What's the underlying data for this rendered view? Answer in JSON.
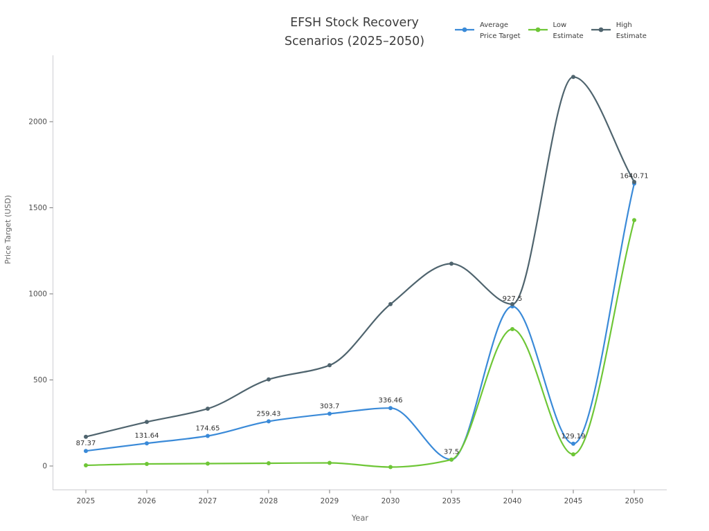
{
  "title": {
    "line1": "EFSH Stock Recovery",
    "line2": "Scenarios (2025–2050)"
  },
  "legend": {
    "items": [
      {
        "line1": "Average",
        "line2": "Price Target",
        "color": "#3a8ad8"
      },
      {
        "line1": "Low",
        "line2": "Estimate",
        "color": "#6ec636"
      },
      {
        "line1": "High",
        "line2": "Estimate",
        "color": "#4f646e"
      }
    ]
  },
  "axes": {
    "x_label": "Year",
    "y_label": "Price Target (USD)",
    "x_tick_labels": [
      "2025",
      "2026",
      "2027",
      "2028",
      "2029",
      "2030",
      "2035",
      "2040",
      "2045",
      "2050"
    ],
    "y_tick_labels": [
      "0",
      "500",
      "1000",
      "1500",
      "2000"
    ]
  },
  "chart_data": {
    "type": "line",
    "title": "EFSH Stock Recovery Scenarios (2025–2050)",
    "xlabel": "Year",
    "ylabel": "Price Target (USD)",
    "categories": [
      "2025",
      "2026",
      "2027",
      "2028",
      "2029",
      "2030",
      "2035",
      "2040",
      "2045",
      "2050"
    ],
    "y_ticks": [
      0,
      500,
      1000,
      1500,
      2000
    ],
    "ylim": [
      -140,
      2390
    ],
    "grid": false,
    "line_shape": "spline",
    "legend_position": "top-right",
    "series": [
      {
        "name": "Average Price Target",
        "color": "#3a8ad8",
        "values": [
          87.37,
          131.64,
          174.65,
          259.43,
          303.7,
          336.46,
          37.5,
          927.5,
          129.19,
          1640.71
        ],
        "point_labels": [
          "87.37",
          "131.64",
          "174.65",
          "259.43",
          "303.7",
          "336.46",
          "37.5",
          "927.5",
          "129.19",
          "1640.71"
        ]
      },
      {
        "name": "Low Estimate",
        "color": "#6ec636",
        "values": [
          4,
          12,
          14,
          16,
          18,
          -6,
          37,
          795,
          68,
          1428
        ],
        "point_labels": []
      },
      {
        "name": "High Estimate",
        "color": "#4f646e",
        "values": [
          170,
          256,
          333,
          503,
          585,
          940,
          1175,
          940,
          2260,
          1650
        ],
        "point_labels": []
      }
    ]
  },
  "colors": {
    "background": "#ffffff",
    "spine": "#d4d4d8",
    "tick_mark": "#777777",
    "tick_label": "#4d4d4d",
    "axis_title": "#666666",
    "title_text": "#3c3c3c",
    "data_label": "#2d2d2d"
  }
}
